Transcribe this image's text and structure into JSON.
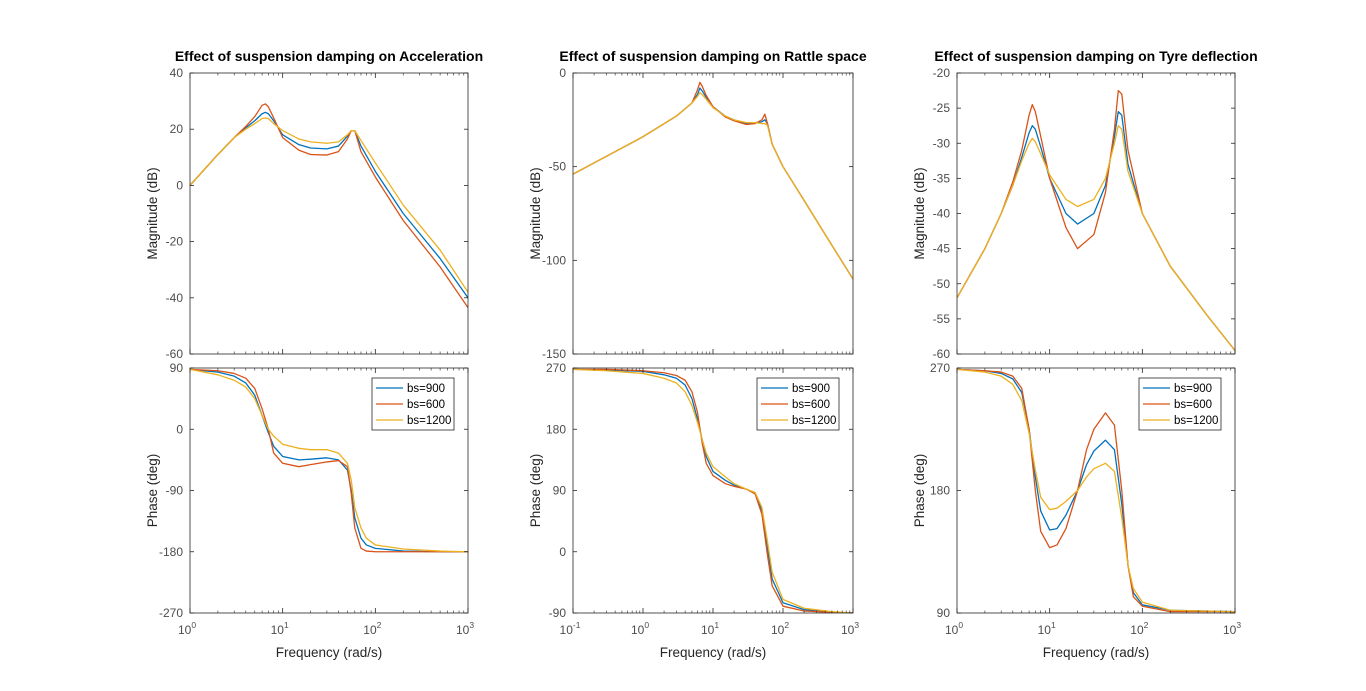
{
  "chart_data": [
    {
      "type": "line",
      "title": "Effect of suspension damping on Acceleration",
      "xlabel": "Frequency  (rad/s)",
      "xscale": "log",
      "xlim": [
        1,
        1000
      ],
      "x_ticks": [
        1,
        10,
        100,
        1000
      ],
      "x_ticklabels": [
        "10^0",
        "10^1",
        "10^2",
        "10^3"
      ],
      "legend": {
        "position": "top-right",
        "entries": [
          "bs=900",
          "bs=600",
          "bs=1200"
        ],
        "shown_on": "phase"
      },
      "series_colors": [
        "#0072BD",
        "#D95319",
        "#EDB120"
      ],
      "magnitude": {
        "ylabel": "Magnitude (dB)",
        "ylim": [
          -60,
          40
        ],
        "y_ticks": [
          -60,
          -40,
          -20,
          0,
          20,
          40
        ],
        "x": [
          1,
          2,
          3,
          4,
          5,
          6,
          6.5,
          7,
          8,
          10,
          15,
          20,
          30,
          40,
          50,
          55,
          60,
          70,
          100,
          200,
          500,
          1000
        ],
        "series": [
          {
            "name": "bs=900",
            "values": [
              0,
              11,
              17,
              20.5,
              23,
              25.5,
              26,
              25.5,
              23,
              18,
              14.5,
              13.3,
              13,
              14,
              17.5,
              19.5,
              19.5,
              14,
              5,
              -10,
              -26,
              -40
            ]
          },
          {
            "name": "bs=600",
            "values": [
              0,
              11,
              17,
              21,
              24.5,
              28.5,
              29,
              28,
              24,
              17,
              12.5,
              11,
              10.8,
              12,
              16.5,
              19.5,
              19.5,
              12,
              3,
              -12.5,
              -29,
              -43.5
            ]
          },
          {
            "name": "bs=1200",
            "values": [
              0,
              11,
              17,
              20,
              22,
              23.8,
              24,
              23.8,
              22,
              19.5,
              16.5,
              15.5,
              15,
              15.5,
              18,
              19.5,
              19.5,
              16,
              8,
              -7,
              -23,
              -38
            ]
          }
        ]
      },
      "phase": {
        "ylabel": "Phase (deg)",
        "ylim": [
          -270,
          90
        ],
        "y_ticks": [
          -270,
          -180,
          -90,
          0,
          90
        ],
        "x": [
          1,
          2,
          3,
          4,
          5,
          6,
          7,
          8,
          10,
          15,
          20,
          30,
          40,
          50,
          55,
          60,
          70,
          80,
          100,
          200,
          500,
          1000
        ],
        "series": [
          {
            "name": "bs=900",
            "values": [
              88,
              84,
              78,
              68,
              50,
              20,
              -5,
              -25,
              -40,
              -45,
              -44,
              -42,
              -45,
              -60,
              -90,
              -130,
              -160,
              -170,
              -175,
              -179,
              -180,
              -180
            ]
          },
          {
            "name": "bs=600",
            "values": [
              88,
              86,
              82,
              75,
              60,
              30,
              0,
              -35,
              -50,
              -55,
              -52,
              -48,
              -46,
              -55,
              -95,
              -145,
              -175,
              -179,
              -180,
              -180,
              -180,
              -180
            ]
          },
          {
            "name": "bs=1200",
            "values": [
              88,
              80,
              72,
              62,
              45,
              20,
              0,
              -10,
              -22,
              -28,
              -30,
              -30,
              -35,
              -50,
              -75,
              -115,
              -145,
              -160,
              -170,
              -176,
              -179,
              -180
            ]
          }
        ]
      }
    },
    {
      "type": "line",
      "title": "Effect of suspension damping on Rattle space",
      "xlabel": "Frequency  (rad/s)",
      "xscale": "log",
      "xlim": [
        0.1,
        1000
      ],
      "x_ticks": [
        0.1,
        1,
        10,
        100,
        1000
      ],
      "x_ticklabels": [
        "10^-1",
        "10^0",
        "10^1",
        "10^2",
        "10^3"
      ],
      "legend": {
        "position": "top-right",
        "entries": [
          "bs=900",
          "bs=600",
          "bs=1200"
        ],
        "shown_on": "phase"
      },
      "series_colors": [
        "#0072BD",
        "#D95319",
        "#EDB120"
      ],
      "magnitude": {
        "ylabel": "Magnitude (dB)",
        "ylim": [
          -150,
          0
        ],
        "y_ticks": [
          -150,
          -100,
          -50,
          0
        ],
        "x": [
          0.1,
          0.3,
          1,
          3,
          5,
          6,
          6.5,
          7,
          8,
          10,
          15,
          20,
          30,
          40,
          50,
          55,
          60,
          70,
          100,
          200,
          500,
          1000
        ],
        "series": [
          {
            "name": "bs=900",
            "values": [
              -54,
              -44.5,
              -34,
              -23,
              -16,
              -11.5,
              -8,
              -9.5,
              -13,
              -18,
              -23,
              -25,
              -27,
              -26.5,
              -26,
              -25,
              -27,
              -38,
              -50,
              -68,
              -92,
              -110
            ]
          },
          {
            "name": "bs=600",
            "values": [
              -54,
              -44.5,
              -34,
              -23,
              -16,
              -9,
              -5,
              -7,
              -12,
              -18,
              -23.5,
              -25.5,
              -27.5,
              -27,
              -25,
              -22,
              -27,
              -38,
              -50,
              -68,
              -92,
              -110
            ]
          },
          {
            "name": "bs=1200",
            "values": [
              -54,
              -44.5,
              -34,
              -23,
              -16,
              -12.5,
              -10.5,
              -11.5,
              -14,
              -18.5,
              -23,
              -25,
              -26.5,
              -26.5,
              -27,
              -27,
              -28,
              -38,
              -50,
              -68,
              -92,
              -110
            ]
          }
        ]
      },
      "phase": {
        "ylabel": "Phase (deg)",
        "ylim": [
          -90,
          270
        ],
        "y_ticks": [
          -90,
          0,
          90,
          180,
          270
        ],
        "x": [
          0.1,
          0.3,
          1,
          2,
          3,
          4,
          5,
          6,
          7,
          8,
          10,
          15,
          20,
          30,
          40,
          50,
          60,
          70,
          100,
          200,
          500,
          1000
        ],
        "series": [
          {
            "name": "bs=900",
            "values": [
              268,
              267,
              265,
              260,
              255,
              245,
              225,
              195,
              165,
              140,
              118,
              105,
              98,
              92,
              86,
              60,
              5,
              -40,
              -75,
              -85,
              -89,
              -90
            ]
          },
          {
            "name": "bs=600",
            "values": [
              268,
              268,
              266,
              263,
              259,
              252,
              235,
              205,
              160,
              130,
              112,
              100,
              96,
              92,
              85,
              55,
              -5,
              -50,
              -80,
              -87,
              -89,
              -90
            ]
          },
          {
            "name": "bs=1200",
            "values": [
              268,
              266,
              262,
              255,
              248,
              235,
              215,
              190,
              165,
              145,
              125,
              110,
              100,
              92,
              87,
              65,
              15,
              -30,
              -70,
              -83,
              -88,
              -90
            ]
          }
        ]
      }
    },
    {
      "type": "line",
      "title": "Effect of suspension damping on Tyre deflection",
      "xlabel": "Frequency  (rad/s)",
      "xscale": "log",
      "xlim": [
        1,
        1000
      ],
      "x_ticks": [
        1,
        10,
        100,
        1000
      ],
      "x_ticklabels": [
        "10^0",
        "10^1",
        "10^2",
        "10^3"
      ],
      "legend": {
        "position": "top-right",
        "entries": [
          "bs=900",
          "bs=600",
          "bs=1200"
        ],
        "shown_on": "phase"
      },
      "series_colors": [
        "#0072BD",
        "#D95319",
        "#EDB120"
      ],
      "magnitude": {
        "ylabel": "Magnitude (dB)",
        "ylim": [
          -60,
          -20
        ],
        "y_ticks": [
          -60,
          -55,
          -50,
          -45,
          -40,
          -35,
          -30,
          -25,
          -20
        ],
        "x": [
          1,
          2,
          3,
          4,
          5,
          6,
          6.5,
          7,
          8,
          10,
          15,
          20,
          30,
          40,
          50,
          55,
          60,
          70,
          100,
          200,
          500,
          1000
        ],
        "series": [
          {
            "name": "bs=900",
            "values": [
              -52,
              -45,
              -40,
              -36,
              -32,
              -28.5,
              -27.5,
              -28,
              -30.5,
              -35,
              -40,
              -41.5,
              -40,
              -36,
              -29,
              -25.5,
              -26,
              -33,
              -40,
              -47.5,
              -54.5,
              -59.5
            ]
          },
          {
            "name": "bs=600",
            "values": [
              -52,
              -45,
              -40,
              -35.5,
              -31,
              -26,
              -24.5,
              -25.5,
              -29,
              -35,
              -42,
              -45,
              -43,
              -37,
              -28,
              -22.5,
              -23,
              -31,
              -40,
              -47.5,
              -54.5,
              -59.5
            ]
          },
          {
            "name": "bs=1200",
            "values": [
              -52,
              -45,
              -40,
              -36,
              -32.5,
              -30,
              -29.3,
              -29.8,
              -31.5,
              -34.5,
              -38,
              -39,
              -38,
              -35,
              -30,
              -27.5,
              -28,
              -34,
              -40,
              -47.5,
              -54.5,
              -59.5
            ]
          }
        ]
      },
      "phase": {
        "ylabel": "Phase (deg)",
        "ylim": [
          90,
          270
        ],
        "y_ticks": [
          90,
          180,
          270
        ],
        "x": [
          1,
          2,
          3,
          4,
          5,
          6,
          7,
          8,
          10,
          12,
          15,
          20,
          25,
          30,
          40,
          50,
          60,
          70,
          80,
          100,
          200,
          1000
        ],
        "series": [
          {
            "name": "bs=900",
            "values": [
              269,
              268,
              266,
              262,
              252,
              225,
              190,
              165,
              151,
              152,
              162,
              180,
              199,
              209,
              217,
              210,
              170,
              125,
              105,
              96,
              92,
              91
            ]
          },
          {
            "name": "bs=600",
            "values": [
              269,
              268,
              267,
              264,
              255,
              225,
              180,
              150,
              138,
              140,
              152,
              180,
              210,
              225,
              237,
              228,
              180,
              125,
              102,
              95,
              91,
              91
            ]
          },
          {
            "name": "bs=1200",
            "values": [
              269,
              267,
              264,
              258,
              246,
              222,
              195,
              175,
              166,
              167,
              172,
              180,
              190,
              196,
              200,
              194,
              160,
              125,
              108,
              98,
              92,
              91
            ]
          }
        ]
      }
    }
  ]
}
